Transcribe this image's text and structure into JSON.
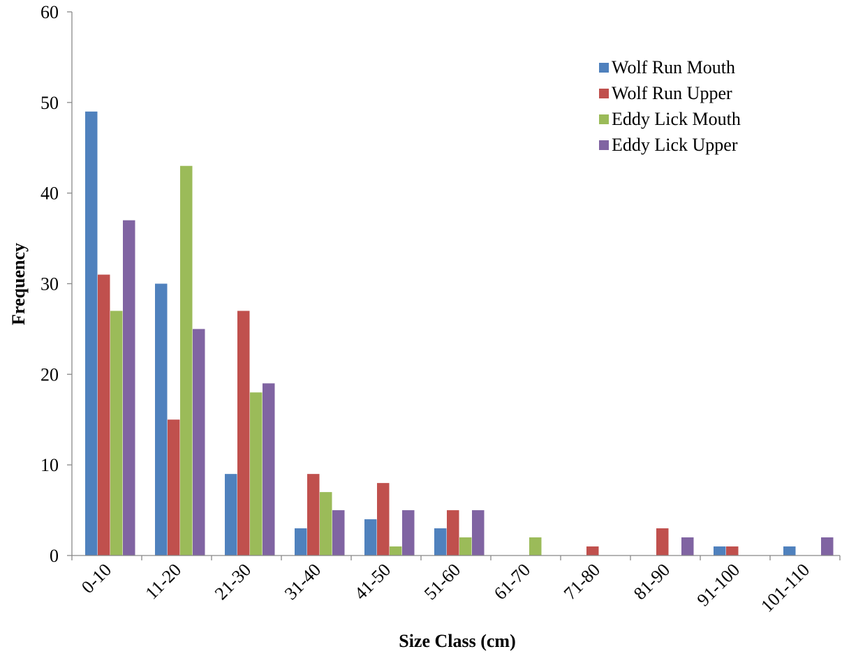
{
  "chart_data": {
    "type": "bar",
    "title": "",
    "xlabel": "Size Class (cm)",
    "ylabel": "Frequency",
    "ylim": [
      0,
      60
    ],
    "yticks": [
      "0",
      "10",
      "20",
      "30",
      "40",
      "50",
      "60"
    ],
    "grid": false,
    "legend_position": "top-right",
    "categories": [
      "0-10",
      "11-20",
      "21-30",
      "31-40",
      "41-50",
      "51-60",
      "61-70",
      "71-80",
      "81-90",
      "91-100",
      "101-110"
    ],
    "series": [
      {
        "name": "Wolf Run Mouth",
        "color": "#4F81BD",
        "values": [
          49,
          30,
          9,
          3,
          4,
          3,
          0,
          0,
          0,
          1,
          1
        ]
      },
      {
        "name": "Wolf Run Upper",
        "color": "#C0504D",
        "values": [
          31,
          15,
          27,
          9,
          8,
          5,
          0,
          1,
          3,
          1,
          0
        ]
      },
      {
        "name": "Eddy Lick Mouth",
        "color": "#9BBB59",
        "values": [
          27,
          43,
          18,
          7,
          1,
          2,
          2,
          0,
          0,
          0,
          0
        ]
      },
      {
        "name": "Eddy Lick Upper",
        "color": "#8064A2",
        "values": [
          37,
          25,
          19,
          5,
          5,
          5,
          0,
          0,
          2,
          0,
          2
        ]
      }
    ]
  }
}
